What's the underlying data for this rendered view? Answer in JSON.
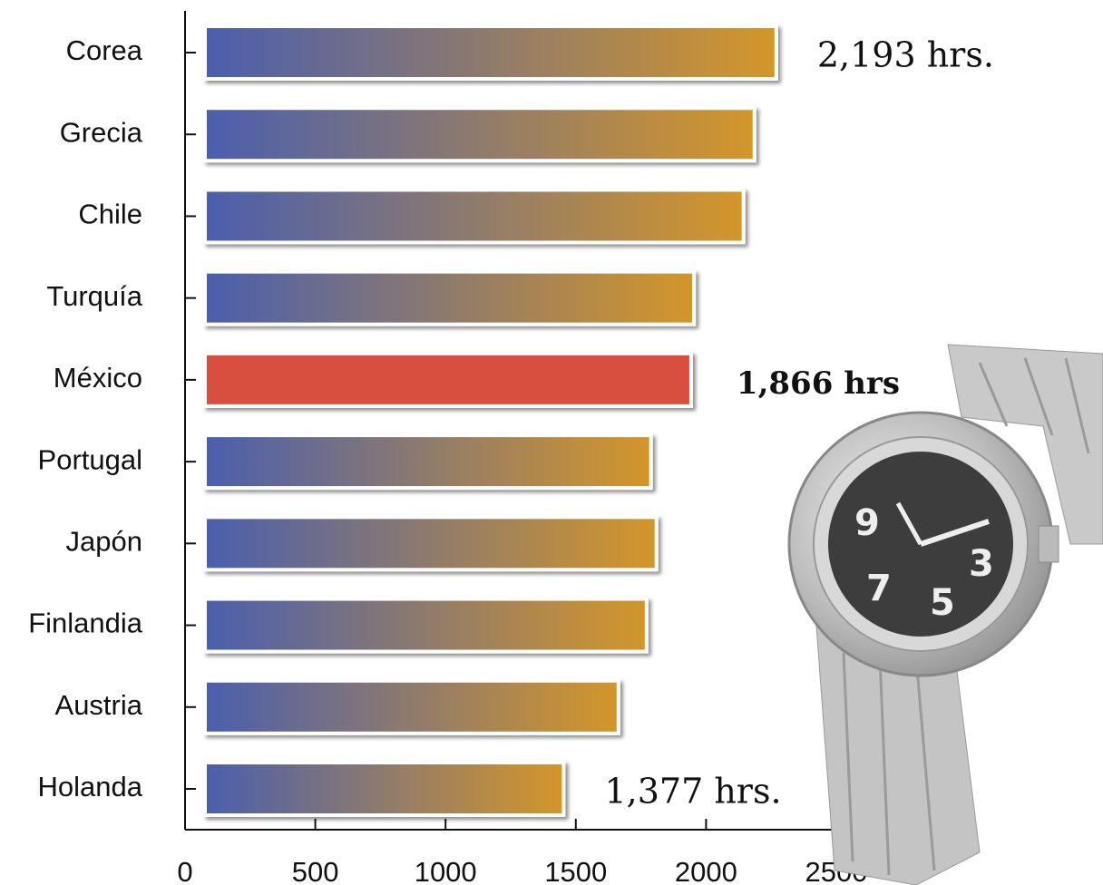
{
  "chart_data": {
    "type": "bar",
    "orientation": "horizontal",
    "categories": [
      "Corea",
      "Grecia",
      "Chile",
      "Turquía",
      "México",
      "Portugal",
      "Japón",
      "Finlandia",
      "Austria",
      "Holanda"
    ],
    "values": [
      2193,
      2109,
      2067,
      1877,
      1866,
      1712,
      1733,
      1695,
      1587,
      1377
    ],
    "value_labels": [
      "2,193 hrs.",
      null,
      null,
      null,
      "1,866 hrs",
      null,
      null,
      null,
      null,
      "1,377 hrs."
    ],
    "gradient_colors": [
      "#4a5fae",
      "#d4962a"
    ],
    "highlight_index": 4,
    "highlight_color": "#d85040",
    "xlim": [
      0,
      2500
    ],
    "xticks": [
      0,
      500,
      1000,
      1500,
      2000,
      2500
    ],
    "grid": false
  }
}
